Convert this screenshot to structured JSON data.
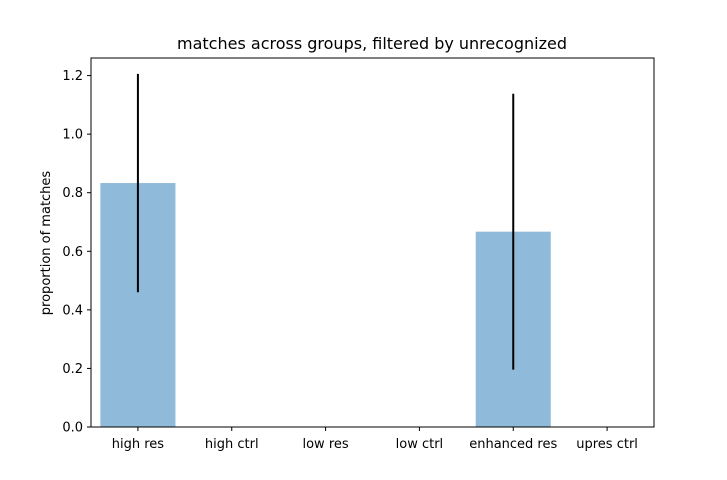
{
  "chart_data": {
    "type": "bar",
    "title": "matches across groups, filtered by unrecognized",
    "xlabel": "",
    "ylabel": "proportion of matches",
    "categories": [
      "high res",
      "high ctrl",
      "low res",
      "low ctrl",
      "enhanced res",
      "upres ctrl"
    ],
    "values": [
      0.833,
      0.0,
      0.0,
      0.0,
      0.667,
      0.0
    ],
    "error": [
      0.373,
      0.0,
      0.0,
      0.0,
      0.471,
      0.0
    ],
    "ylim": [
      0,
      1.26
    ],
    "yticks": [
      "0.0",
      "0.2",
      "0.4",
      "0.6",
      "0.8",
      "1.0",
      "1.2"
    ],
    "grid": false,
    "bar_color": "#8fbad9",
    "error_color": "#000000"
  }
}
